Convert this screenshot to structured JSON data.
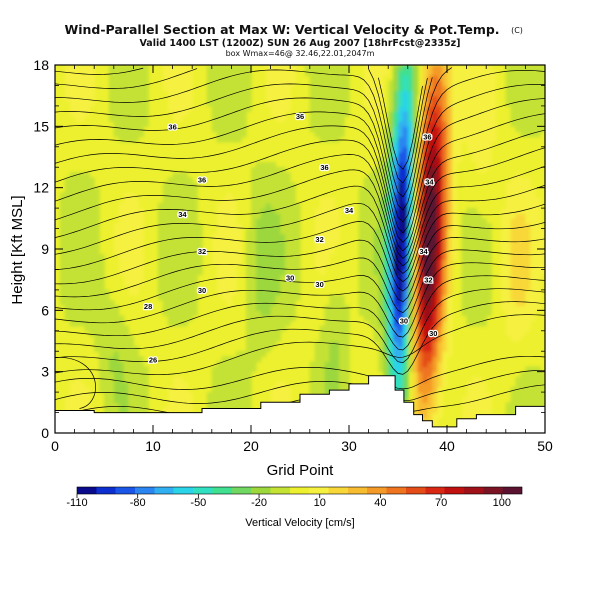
{
  "chart_data": {
    "type": "contour",
    "title": "Wind-Parallel Section at Max W: Vertical Velocity & Pot.Temp.",
    "title_mark": "(C)",
    "subtitle": "Valid 1400 LST (1200Z) SUN 26 Aug 2007 [18hrFcst@2335z]",
    "subtitle2": "box Wmax=46@ 32.46,22.01,2047m",
    "xlabel": "Grid Point",
    "ylabel": "Height [Kft MSL]",
    "xlim": [
      0,
      50
    ],
    "ylim": [
      0,
      18
    ],
    "xticks": [
      "0",
      "10",
      "20",
      "30",
      "40",
      "50"
    ],
    "yticks": [
      "0",
      "3",
      "6",
      "9",
      "12",
      "15",
      "18"
    ],
    "colorbar": {
      "label": "Vertical Velocity [cm/s]",
      "ticks": [
        "-110",
        "-80",
        "-50",
        "-20",
        "10",
        "40",
        "70",
        "100"
      ],
      "levels": [
        -110,
        -100,
        -90,
        -80,
        -70,
        -60,
        -50,
        -40,
        -30,
        -20,
        -10,
        0,
        10,
        20,
        30,
        40,
        50,
        60,
        70,
        80,
        90,
        100,
        110
      ],
      "colors": [
        "#0a0a8c",
        "#0d2fd0",
        "#1a55e8",
        "#2a85f0",
        "#30b0f0",
        "#2ad3e8",
        "#30e0c0",
        "#40e090",
        "#70d860",
        "#9cd83c",
        "#c4e234",
        "#ecf02e",
        "#f6f040",
        "#f8d838",
        "#f8bc30",
        "#f49a28",
        "#ee7420",
        "#e44c18",
        "#d82814",
        "#c01010",
        "#a01018",
        "#7a1424",
        "#5a1230"
      ]
    },
    "contour_labels": [
      {
        "x": 12,
        "y": 15.0,
        "text": "36"
      },
      {
        "x": 25,
        "y": 15.5,
        "text": "36"
      },
      {
        "x": 15,
        "y": 12.4,
        "text": "36"
      },
      {
        "x": 27.5,
        "y": 13.0,
        "text": "36"
      },
      {
        "x": 13,
        "y": 10.7,
        "text": "34"
      },
      {
        "x": 30,
        "y": 10.9,
        "text": "34"
      },
      {
        "x": 15,
        "y": 8.9,
        "text": "32"
      },
      {
        "x": 27,
        "y": 9.5,
        "text": "32"
      },
      {
        "x": 15,
        "y": 7.0,
        "text": "30"
      },
      {
        "x": 24,
        "y": 7.6,
        "text": "30"
      },
      {
        "x": 27,
        "y": 7.3,
        "text": "30"
      },
      {
        "x": 9.5,
        "y": 6.2,
        "text": "28"
      },
      {
        "x": 10,
        "y": 3.6,
        "text": "26"
      },
      {
        "x": 38,
        "y": 14.5,
        "text": "36"
      },
      {
        "x": 38.2,
        "y": 12.3,
        "text": "34"
      },
      {
        "x": 37.6,
        "y": 8.9,
        "text": "34"
      },
      {
        "x": 38.1,
        "y": 7.5,
        "text": "32"
      },
      {
        "x": 35.6,
        "y": 5.5,
        "text": "30"
      },
      {
        "x": 38.6,
        "y": 4.9,
        "text": "30"
      }
    ],
    "terrain_x": [
      0,
      0,
      4,
      4,
      15,
      15,
      21,
      21,
      25,
      25,
      28,
      28,
      30,
      30,
      32,
      32,
      34.7,
      34.7,
      35.6,
      35.6,
      36.6,
      36.6,
      37.5,
      37.5,
      38.5,
      38.5,
      41,
      41,
      43,
      43,
      47,
      47,
      50,
      50
    ],
    "terrain_y": [
      0,
      1.1,
      1.1,
      1.0,
      1.0,
      1.2,
      1.2,
      1.5,
      1.5,
      1.9,
      1.9,
      2.1,
      2.1,
      2.4,
      2.4,
      2.8,
      2.8,
      2.1,
      2.1,
      1.5,
      1.5,
      0.9,
      0.9,
      0.6,
      0.6,
      0.3,
      0.3,
      0.7,
      0.7,
      0.9,
      0.9,
      1.3,
      1.3,
      0
    ]
  }
}
